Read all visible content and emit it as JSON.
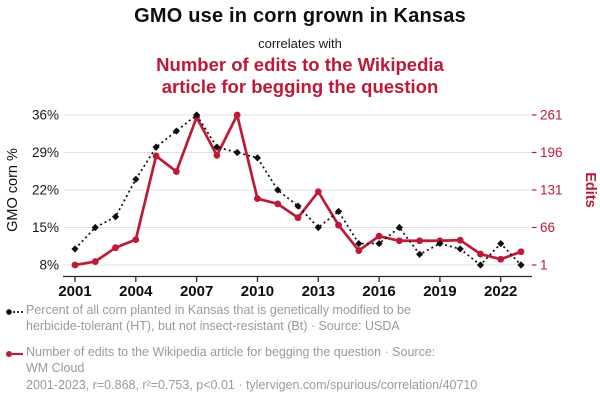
{
  "header": {
    "title": "GMO use in corn grown in Kansas",
    "connector": "correlates with",
    "subtitle_lines": [
      "Number of edits to the Wikipedia",
      "article for begging the question"
    ]
  },
  "colors": {
    "accent_red": "#be1937",
    "series_black": "#0d0d0d",
    "grid": "#e2e2e2",
    "axis": "#2a2a2a",
    "legend_text": "#9a9a9a"
  },
  "chart_data": {
    "type": "line",
    "x": [
      2001,
      2002,
      2003,
      2004,
      2005,
      2006,
      2007,
      2008,
      2009,
      2010,
      2011,
      2012,
      2013,
      2014,
      2015,
      2016,
      2017,
      2018,
      2019,
      2020,
      2021,
      2022,
      2023
    ],
    "x_tick_labels": [
      "2001",
      "2004",
      "2007",
      "2010",
      "2013",
      "2016",
      "2019",
      "2022"
    ],
    "x_tick_years": [
      2001,
      2004,
      2007,
      2010,
      2013,
      2016,
      2019,
      2022
    ],
    "series": [
      {
        "name": "GMO corn % (herbicide-tolerant only, Kansas)",
        "axis": "left",
        "style": "dashed-diamond",
        "values": [
          11,
          15,
          17,
          24,
          30,
          33,
          36,
          30,
          29,
          28,
          22,
          19,
          15,
          18,
          12,
          12,
          15,
          10,
          12,
          11,
          8,
          12,
          8
        ]
      },
      {
        "name": "Wikipedia edits to article for begging the question",
        "axis": "right",
        "style": "solid-circle",
        "values": [
          1,
          7,
          31,
          45,
          190,
          163,
          257,
          191,
          261,
          116,
          107,
          83,
          128,
          70,
          26,
          51,
          43,
          43,
          43,
          44,
          20,
          11,
          24
        ]
      }
    ],
    "left_axis": {
      "label": "GMO corn %",
      "tick_labels": [
        "36%",
        "29%",
        "22%",
        "15%",
        "8%"
      ],
      "tick_values": [
        36,
        29,
        22,
        15,
        8
      ],
      "range": [
        8,
        36
      ]
    },
    "right_axis": {
      "label": "Edits",
      "tick_labels": [
        "261",
        "196",
        "131",
        "66",
        "1"
      ],
      "tick_values": [
        261,
        196,
        131,
        66,
        1
      ],
      "range": [
        1,
        261
      ]
    },
    "grid": true,
    "legend_position": "bottom"
  },
  "legend": {
    "item1_lines": [
      "Percent of all corn planted in Kansas that is genetically modified to be",
      "herbicide-tolerant (HT), but not insect-resistant (Bt) · Source: USDA"
    ],
    "item2_lines": [
      "Number of edits to the Wikipedia article for begging the question · Source:",
      "WM Cloud"
    ]
  },
  "footer": {
    "stats_line": "2001-2023, r=0.868, r²=0.753, p<0.01 · tylervigen.com/spurious/correlation/40710"
  }
}
